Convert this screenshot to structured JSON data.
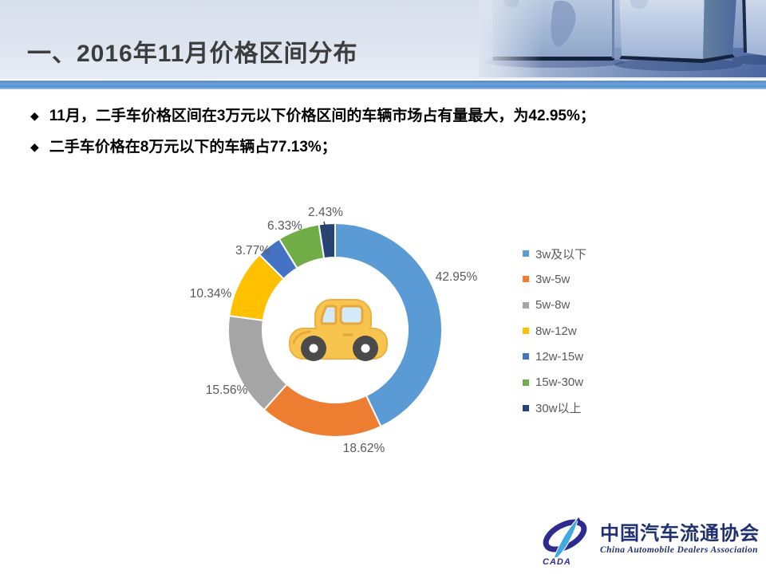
{
  "slide": {
    "title": "一、2016年11月价格区间分布",
    "bullets": [
      "11月，二手车价格区间在3万元以下价格区间的车辆市场占有量最大，为42.95%；",
      "二手车价格在8万元以下的车辆占77.13%；"
    ],
    "bullet_glyph": "◆"
  },
  "chart_data": {
    "type": "pie",
    "subtype": "donut",
    "categories": [
      "3w及以下",
      "3w-5w",
      "5w-8w",
      "8w-12w",
      "12w-15w",
      "15w-30w",
      "30w以上"
    ],
    "values": [
      42.95,
      18.62,
      15.56,
      10.34,
      3.77,
      6.33,
      2.43
    ],
    "labels": [
      "42.95%",
      "18.62%",
      "15.56%",
      "10.34%",
      "3.77%",
      "6.33%",
      "2.43%"
    ],
    "colors": [
      "#5B9BD5",
      "#ED7D31",
      "#A5A5A5",
      "#FFC000",
      "#4472C4",
      "#70AD47",
      "#264478"
    ],
    "label_color": "#595959",
    "legend_position": "right",
    "donut_hole_ratio": 0.68,
    "start_angle_deg": 0,
    "direction": "clockwise",
    "center_icon": "car-icon"
  },
  "logo": {
    "acronym": "CADA",
    "name_cn": "中国汽车流通协会",
    "name_en": "China Automobile Dealers Association"
  },
  "theme": {
    "stripe_blue": "#5B9BD5",
    "title_color": "#3D3D3D",
    "body_text_color": "#000000",
    "chart_label_color": "#595959"
  }
}
